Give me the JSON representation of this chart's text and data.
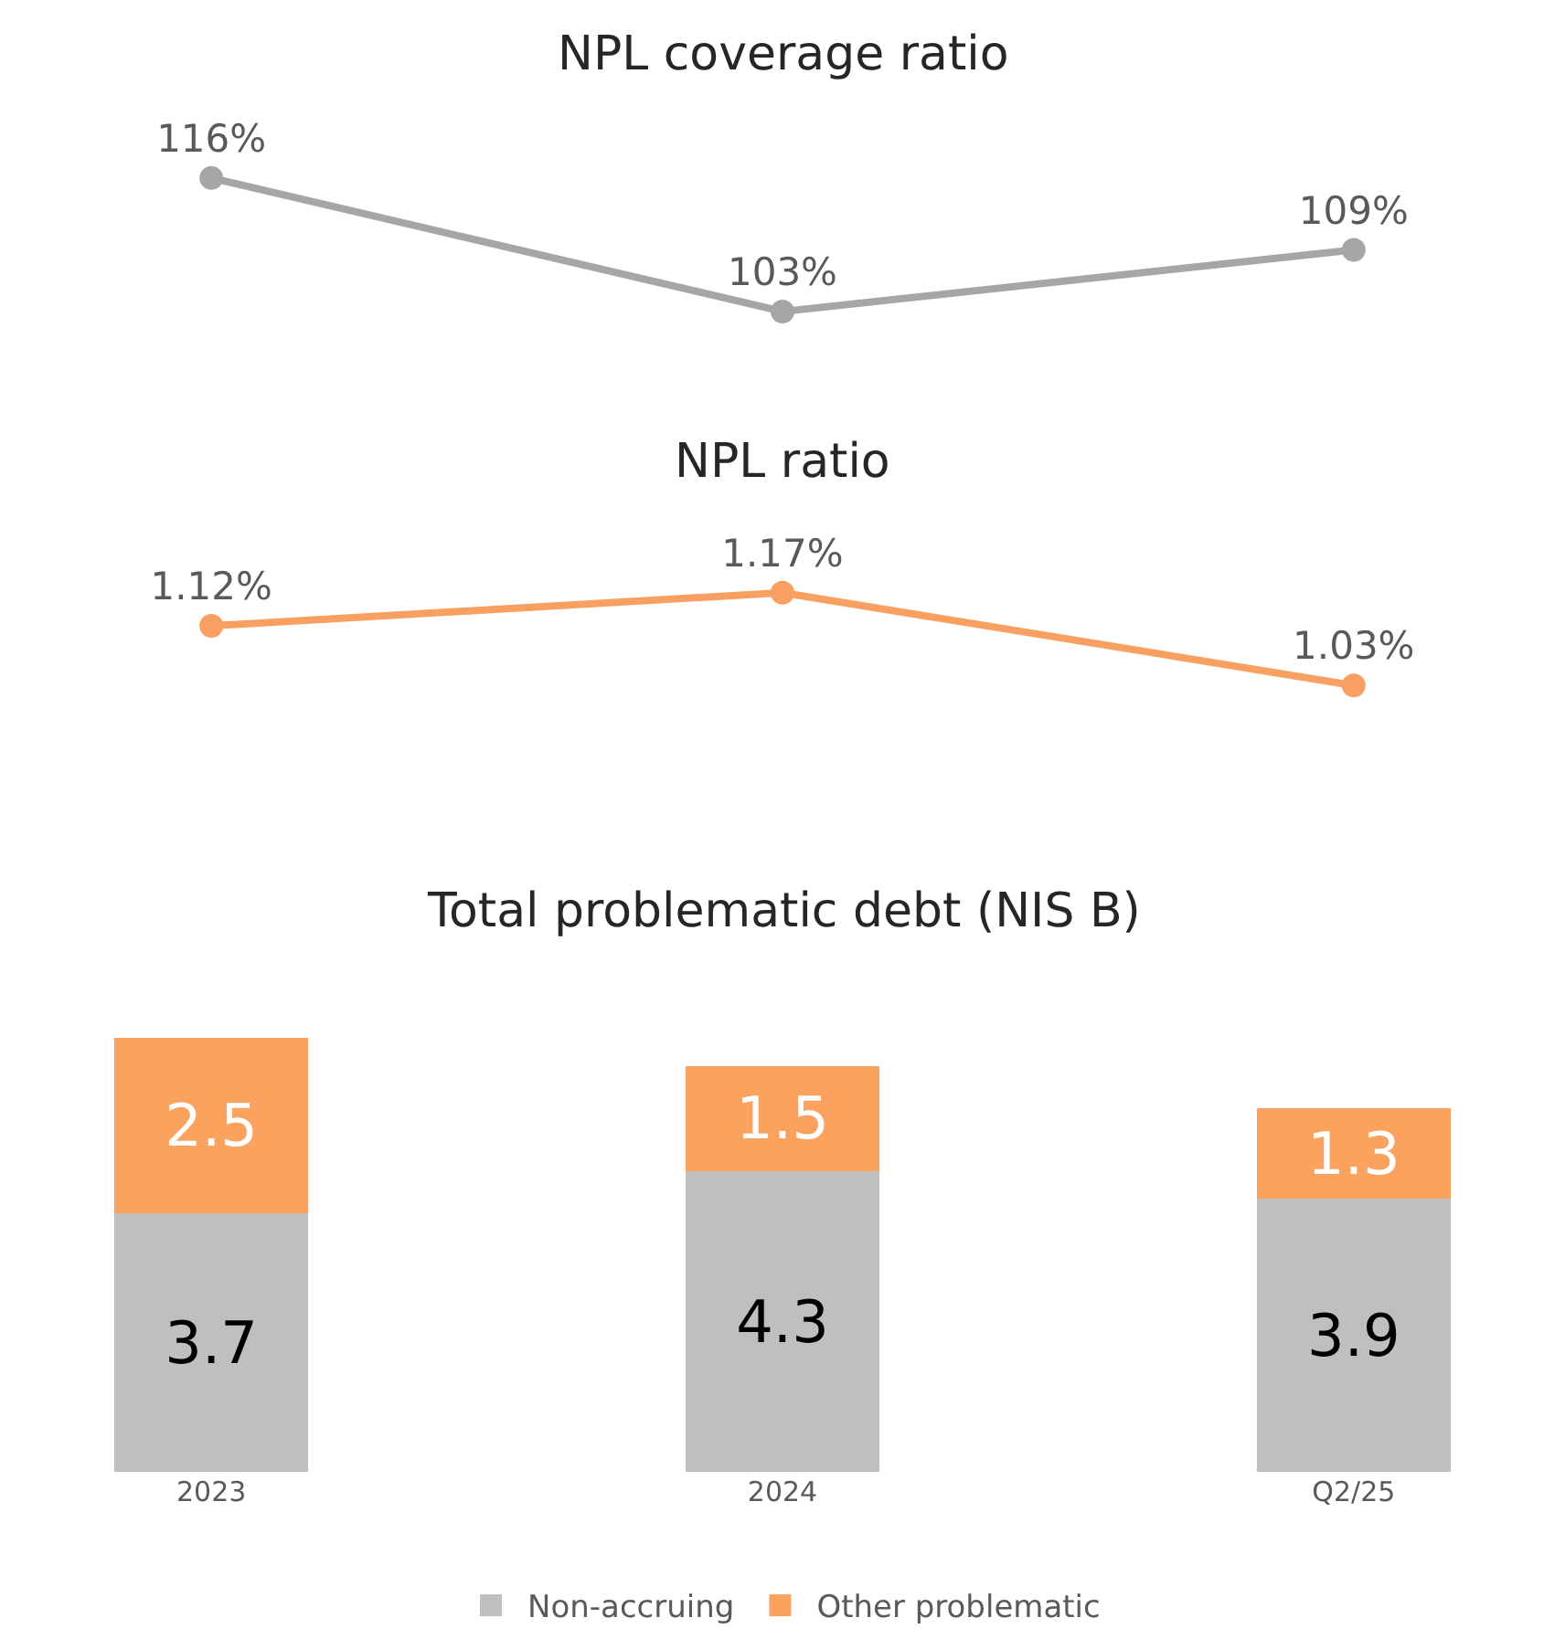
{
  "chart_data": [
    {
      "type": "line",
      "title": "NPL coverage ratio",
      "categories": [
        null,
        null,
        null
      ],
      "series": [
        {
          "color": "#a6a6a6",
          "values": [
            116,
            103,
            109
          ],
          "value_labels": [
            "116%",
            "103%",
            "109%"
          ]
        }
      ],
      "marker": "circle",
      "line_style": "solid",
      "legend": false,
      "tick_labels": false
    },
    {
      "type": "line",
      "title": "NPL ratio",
      "categories": [
        null,
        null,
        null
      ],
      "series": [
        {
          "color": "#f7a061",
          "values": [
            1.12,
            1.17,
            1.03
          ],
          "value_labels": [
            "1.12%",
            "1.17%",
            "1.03%"
          ]
        }
      ],
      "marker": "circle",
      "line_style": "solid",
      "legend": false,
      "tick_labels": false
    },
    {
      "type": "bar",
      "title": "Total problematic debt (NIS B)",
      "categories": [
        "2023",
        "2024",
        "Q2/25"
      ],
      "stacked": true,
      "series": [
        {
          "name": "Non-accruing",
          "color": "#bfbfbf",
          "values": [
            3.7,
            4.3,
            3.9
          ]
        },
        {
          "name": "Other problematic",
          "color": "#fba25f",
          "values": [
            2.5,
            1.5,
            1.3
          ]
        }
      ],
      "data_labels": true,
      "legend": "bottom",
      "tick_labels": "x"
    }
  ]
}
